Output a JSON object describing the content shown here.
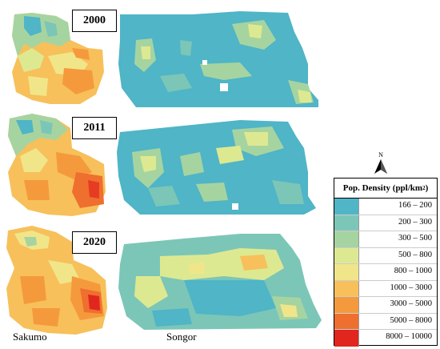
{
  "colors": {
    "c1": "#4fb5c7",
    "c2": "#7cc6b7",
    "c3": "#a6d4a0",
    "c4": "#dde991",
    "c5": "#f1e58a",
    "c6": "#f7c05a",
    "c7": "#f59a3c",
    "c8": "#ef6f2e",
    "c9": "#e1261f"
  },
  "panels": [
    {
      "year": "2000"
    },
    {
      "year": "2011"
    },
    {
      "year": "2020"
    }
  ],
  "region_labels": {
    "left": "Sakumo",
    "right": "Songor"
  },
  "north_arrow": {
    "letter": "N",
    "icon": "north-arrow-icon"
  },
  "legend": {
    "title": "Pop. Density (ppl/km",
    "title_sup": "2",
    "title_close": ")",
    "classes": [
      {
        "label": "166 – 200",
        "color": "#4fb5c7"
      },
      {
        "label": "200 – 300",
        "color": "#7cc6b7"
      },
      {
        "label": "300 – 500",
        "color": "#a6d4a0"
      },
      {
        "label": "500 – 800",
        "color": "#dde991"
      },
      {
        "label": "800 – 1000",
        "color": "#f1e58a"
      },
      {
        "label": "1000 – 3000",
        "color": "#f7c05a"
      },
      {
        "label": "3000 – 5000",
        "color": "#f59a3c"
      },
      {
        "label": "5000 – 8000",
        "color": "#ef6f2e"
      },
      {
        "label": "8000 – 10000",
        "color": "#e1261f"
      }
    ]
  }
}
